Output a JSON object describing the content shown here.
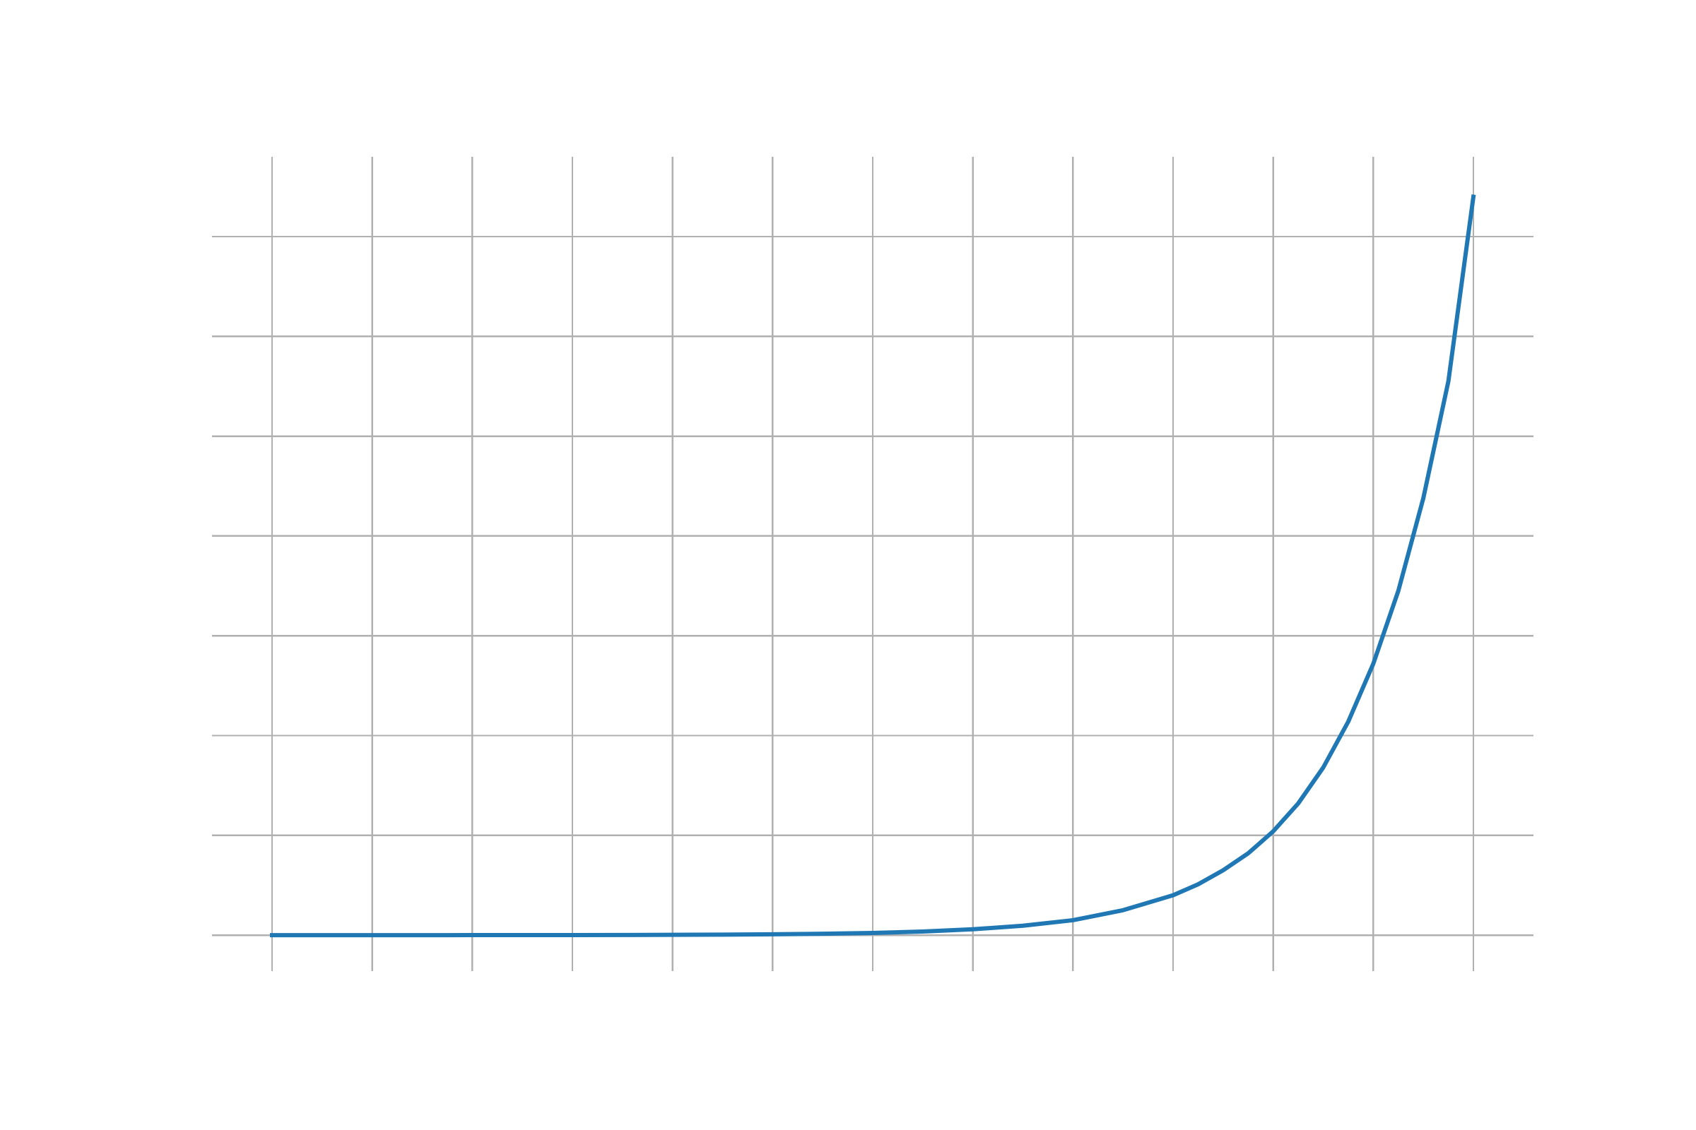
{
  "chart_data": {
    "type": "line",
    "title": "",
    "xlabel": "",
    "ylabel": "",
    "grid": true,
    "axes_visible": false,
    "xlim": [
      -0.6,
      12.6
    ],
    "ylim": [
      -0.36,
      7.8
    ],
    "x_gridlines": [
      0,
      1,
      2,
      3,
      4,
      5,
      6,
      7,
      8,
      9,
      10,
      11,
      12
    ],
    "y_gridlines": [
      0,
      1,
      2,
      3,
      4,
      5,
      6,
      7
    ],
    "series": [
      {
        "color": "#1f77b4",
        "curve": "exponential",
        "x": [
          0,
          0.5,
          1,
          1.5,
          2,
          2.5,
          3,
          3.5,
          4,
          4.5,
          5,
          5.5,
          6,
          6.5,
          7,
          7.5,
          8,
          8.5,
          9,
          9.25,
          9.5,
          9.75,
          10,
          10.25,
          10.5,
          10.75,
          11,
          11.25,
          11.5,
          11.75,
          12
        ],
        "y": [
          0.0001,
          0.00015,
          0.0002,
          0.0003,
          0.0005,
          0.0008,
          0.0013,
          0.002,
          0.0033,
          0.0053,
          0.0086,
          0.014,
          0.022,
          0.036,
          0.059,
          0.095,
          0.15,
          0.25,
          0.4,
          0.51,
          0.65,
          0.82,
          1.04,
          1.32,
          1.68,
          2.14,
          2.72,
          3.45,
          4.38,
          5.55,
          7.4
        ]
      }
    ]
  }
}
